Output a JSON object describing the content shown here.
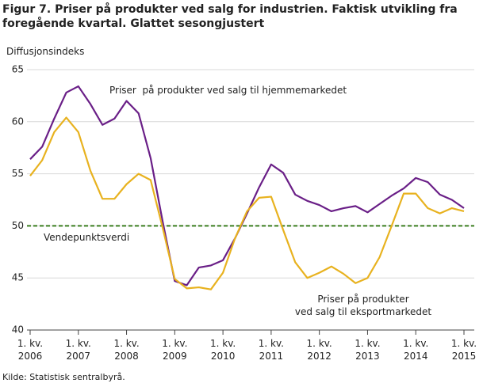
{
  "chart_data": {
    "type": "line",
    "title": "Figur 7. Priser på produkter ved salg for industrien. Faktisk utvikling fra foregående kvartal. Glattet sesongjustert",
    "y_label": "Diffusjonsindeks",
    "source": "Kilde: Statistisk sentralbyrå.",
    "categories": [
      "1. kv.\n2006",
      null,
      null,
      null,
      "1. kv.\n2007",
      null,
      null,
      null,
      "1. kv.\n2008",
      null,
      null,
      null,
      "1. kv.\n2009",
      null,
      null,
      null,
      "1. kv.\n2010",
      null,
      null,
      null,
      "1. kv.\n2011",
      null,
      null,
      null,
      "1. kv.\n2012",
      null,
      null,
      null,
      "1. kv.\n2013",
      null,
      null,
      null,
      "1. kv.\n2014",
      null,
      null,
      null,
      "1. kv.\n2015"
    ],
    "series": [
      {
        "name": "Priser  på produkter ved salg til hjemmemarkedet",
        "color": "#6a1f87",
        "values": [
          56.4,
          57.6,
          60.3,
          62.8,
          63.4,
          61.7,
          59.7,
          60.3,
          62.0,
          60.8,
          56.5,
          50.4,
          44.7,
          44.3,
          46.0,
          46.2,
          46.7,
          48.8,
          51.2,
          53.7,
          55.9,
          55.1,
          53.0,
          52.4,
          52.0,
          51.4,
          51.7,
          51.9,
          51.3,
          52.1,
          52.9,
          53.6,
          54.6,
          54.2,
          53.0,
          52.5,
          51.7
        ]
      },
      {
        "name": "Priser  på produkter\nved salg til eksportmarkedet",
        "color": "#e8b21f",
        "values": [
          54.8,
          56.3,
          59.0,
          60.4,
          59.0,
          55.3,
          52.6,
          52.6,
          54.0,
          55.0,
          54.4,
          49.8,
          44.9,
          44.0,
          44.1,
          43.9,
          45.5,
          48.8,
          51.4,
          52.7,
          52.8,
          49.6,
          46.5,
          45.0,
          45.5,
          46.1,
          45.4,
          44.5,
          45.0,
          47.0,
          50.0,
          53.1,
          53.1,
          51.7,
          51.2,
          51.7,
          51.4
        ]
      }
    ],
    "reference_line": {
      "value": 50,
      "label": "Vendepunktsverdi",
      "color": "#3a7d1e"
    },
    "ylim": [
      40,
      65
    ],
    "yticks": [
      40,
      45,
      50,
      55,
      60,
      65
    ],
    "grid": true
  }
}
